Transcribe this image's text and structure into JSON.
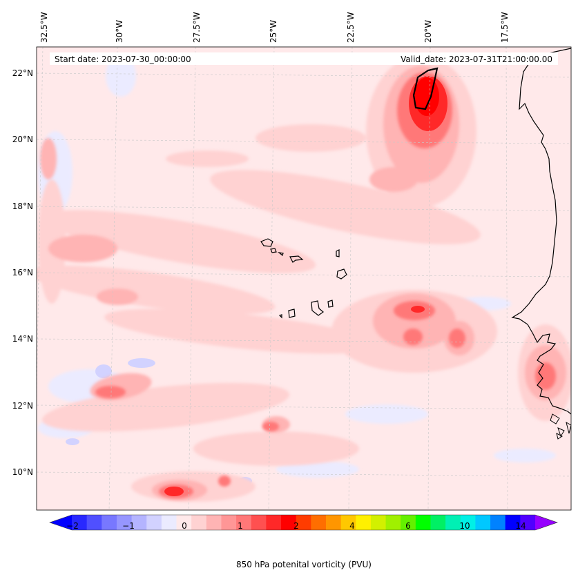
{
  "header": {
    "start_date": "Start date: 2023-07-30_00:00:00",
    "valid_date": "Valid_date: 2023-07-31T21:00:00.00"
  },
  "map": {
    "longitude_labels": [
      "32.5°W",
      "30°W",
      "27.5°W",
      "25°W",
      "22.5°W",
      "20°W",
      "17.5°W"
    ],
    "latitude_labels": [
      "22°N",
      "20°N",
      "18°N",
      "16°N",
      "14°N",
      "12°N",
      "10°N"
    ],
    "field": "850 hPa potential vorticity",
    "colors": {
      "land_outline": "#000000",
      "gridline": "#c8c8c8",
      "background_field": "#ffe9ea"
    }
  },
  "colorbar": {
    "title": "850 hPa potenital vorticity (PVU)",
    "tick_labels": [
      "−2",
      "−1",
      "0",
      "1",
      "2",
      "4",
      "6",
      "10",
      "14"
    ],
    "colors": [
      "#0000ff",
      "#2828ff",
      "#5050ff",
      "#7878ff",
      "#9696ff",
      "#b4b4ff",
      "#d2d2ff",
      "#ebebff",
      "#ffe9ea",
      "#ffd2d2",
      "#ffb4b4",
      "#ff9696",
      "#ff7878",
      "#ff5050",
      "#ff2828",
      "#ff0000",
      "#ff3c00",
      "#ff6e00",
      "#ff9600",
      "#ffc800",
      "#fff000",
      "#d2f000",
      "#a0f000",
      "#64f000",
      "#00ff00",
      "#00f064",
      "#00f0b4",
      "#00f0e6",
      "#00c8ff",
      "#0082ff",
      "#0000ff",
      "#5000ff",
      "#9600ff"
    ]
  }
}
